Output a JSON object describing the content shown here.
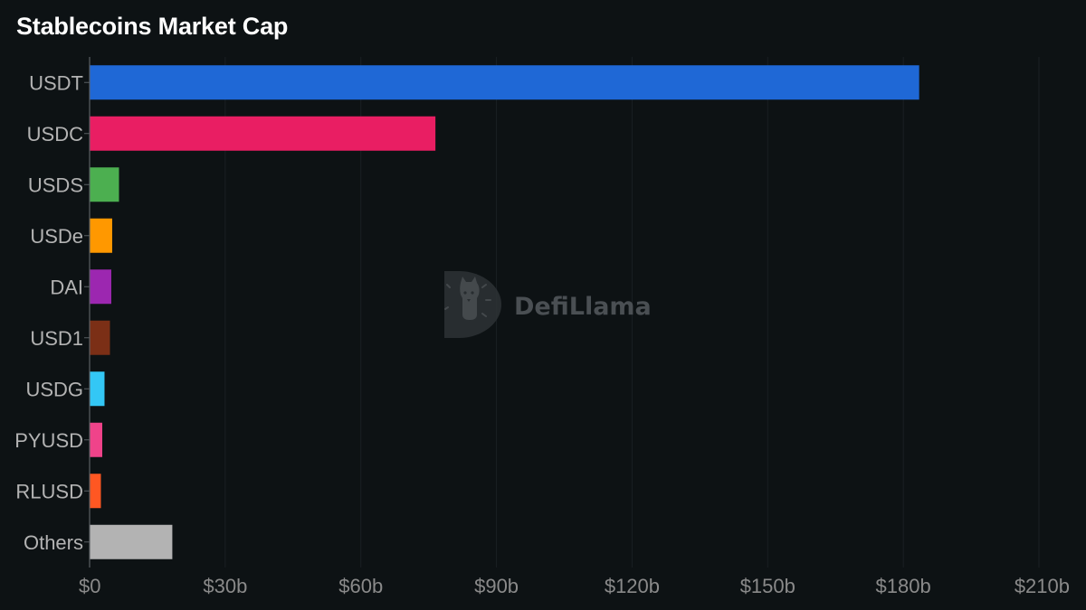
{
  "chart_data": {
    "type": "bar",
    "orientation": "horizontal",
    "title": "Stablecoins Market Cap",
    "categories": [
      "USDT",
      "USDC",
      "USDS",
      "USDe",
      "DAI",
      "USD1",
      "USDG",
      "PYUSD",
      "RLUSD",
      "Others"
    ],
    "values": [
      183.5,
      76.5,
      6.5,
      5.0,
      4.8,
      4.5,
      3.3,
      2.8,
      2.5,
      18.3
    ],
    "colors": [
      "#1f68d6",
      "#e91e63",
      "#4caf50",
      "#ff9800",
      "#9c27b0",
      "#7b2f16",
      "#33c7f5",
      "#f0438a",
      "#ff5722",
      "#b3b3b3"
    ],
    "xlim": [
      0,
      210
    ],
    "xticks": [
      0,
      30,
      60,
      90,
      120,
      150,
      180,
      210
    ],
    "xtick_labels": [
      "$0",
      "$30b",
      "$60b",
      "$90b",
      "$120b",
      "$150b",
      "$180b",
      "$210b"
    ],
    "xlabel": "",
    "ylabel": "",
    "grid": "vertical gridlines",
    "legend": "none"
  },
  "watermark": {
    "text": "DefiLlama",
    "icon": "defillama-logo-icon"
  },
  "colors": {
    "background": "#0d1214",
    "axis": "#5a5f63",
    "grid": "#1a2023"
  }
}
